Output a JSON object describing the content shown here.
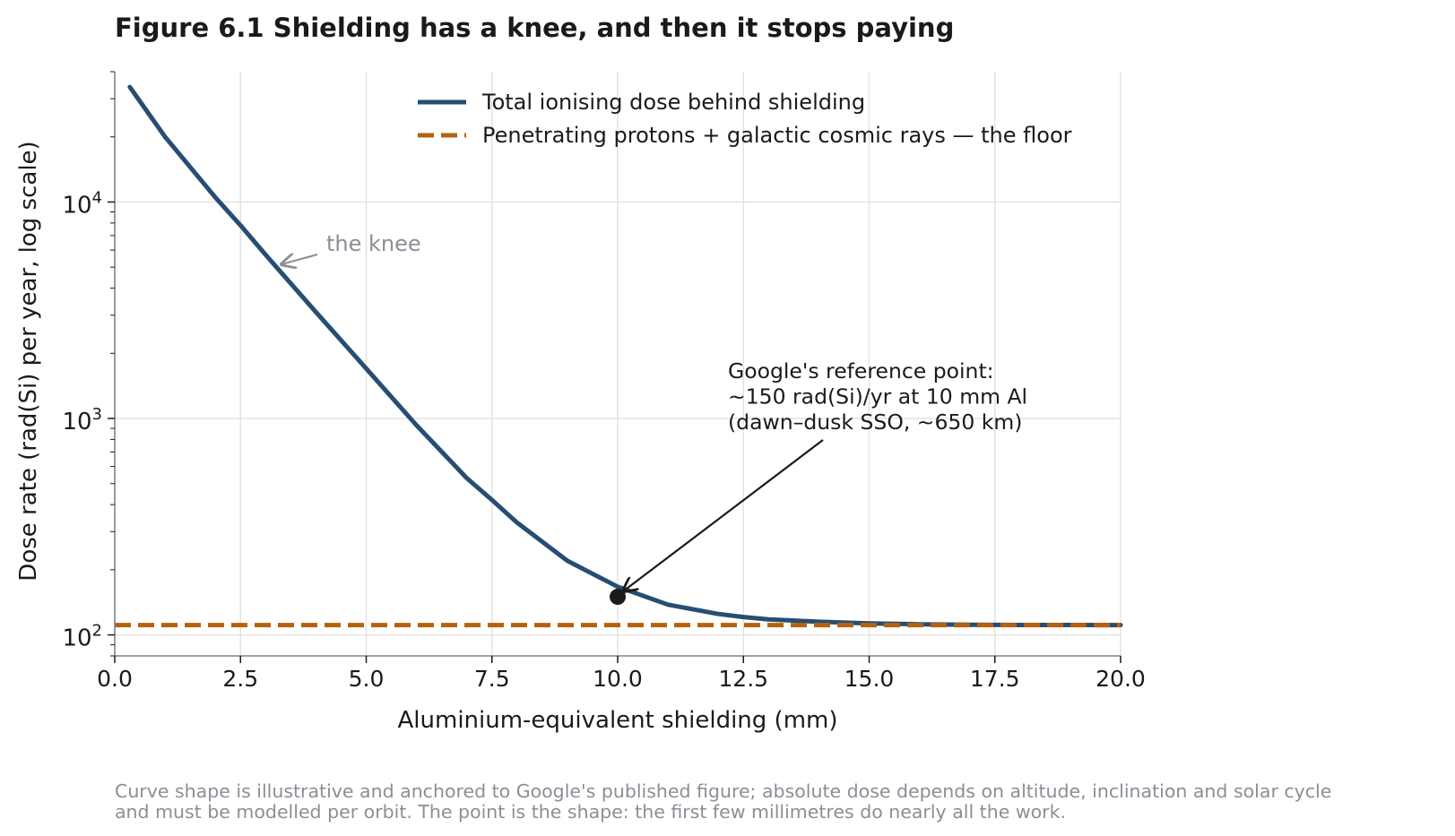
{
  "figure": {
    "title": "Figure 6.1  Shielding has a knee, and then it stops paying",
    "footnote_lines": [
      "Curve shape is illustrative and anchored to Google's published figure; absolute dose depends on altitude, inclination and solar cycle",
      "and must be modelled per orbit. The point is the shape: the first few millimetres do nearly all the work."
    ]
  },
  "chart_data": {
    "type": "line",
    "title": "Figure 6.1  Shielding has a knee, and then it stops paying",
    "xlabel": "Aluminium-equivalent shielding (mm)",
    "ylabel": "Dose rate (rad(Si) per year, log scale)",
    "xlim": [
      0,
      20
    ],
    "ylim": [
      80,
      40000
    ],
    "yscale": "log",
    "grid": true,
    "legend_position": "top-center",
    "x_ticks": [
      {
        "value": 0,
        "label": "0.0"
      },
      {
        "value": 2.5,
        "label": "2.5"
      },
      {
        "value": 5,
        "label": "5.0"
      },
      {
        "value": 7.5,
        "label": "7.5"
      },
      {
        "value": 10,
        "label": "10.0"
      },
      {
        "value": 12.5,
        "label": "12.5"
      },
      {
        "value": 15,
        "label": "15.0"
      },
      {
        "value": 17.5,
        "label": "17.5"
      },
      {
        "value": 20,
        "label": "20.0"
      }
    ],
    "y_ticks": [
      {
        "value": 100,
        "base": "10",
        "exp": "2"
      },
      {
        "value": 1000,
        "base": "10",
        "exp": "3"
      },
      {
        "value": 10000,
        "base": "10",
        "exp": "4"
      }
    ],
    "series": [
      {
        "name": "Total ionising dose behind shielding",
        "color": "#264e73",
        "style": "solid",
        "x": [
          0.3,
          1.0,
          2.0,
          2.5,
          3.0,
          4.0,
          5.0,
          6.0,
          7.0,
          7.5,
          8.0,
          9.0,
          10.0,
          11.0,
          12.0,
          12.5,
          13.0,
          14.0,
          15.0,
          16.0,
          17.0,
          17.5,
          18.0,
          19.0,
          20.0
        ],
        "y": [
          34000,
          20000,
          10500,
          7800,
          5700,
          3100,
          1700,
          930,
          530,
          420,
          330,
          220,
          167,
          138,
          125,
          121,
          118,
          115,
          113,
          112,
          111.5,
          111.3,
          111.2,
          111.1,
          111
        ]
      },
      {
        "name": "Penetrating protons + galactic cosmic rays — the floor",
        "color": "#b5620f",
        "style": "dashed",
        "x": [
          0,
          20
        ],
        "y": [
          111,
          111
        ]
      }
    ],
    "points": [
      {
        "name": "reference-point",
        "x": 10,
        "y": 150,
        "color": "#1a1a1a"
      }
    ],
    "annotations": [
      {
        "name": "knee",
        "lines": [
          "the knee"
        ],
        "x": 3.3,
        "y": 5100,
        "color": "#8a8f96"
      },
      {
        "name": "reference",
        "lines": [
          "Google's reference point:",
          "~150 rad(Si)/yr at 10 mm Al",
          "(dawn–dusk SSO, ~650 km)"
        ],
        "x": 10.1,
        "y": 158,
        "color": "#1a1a1a"
      }
    ]
  }
}
